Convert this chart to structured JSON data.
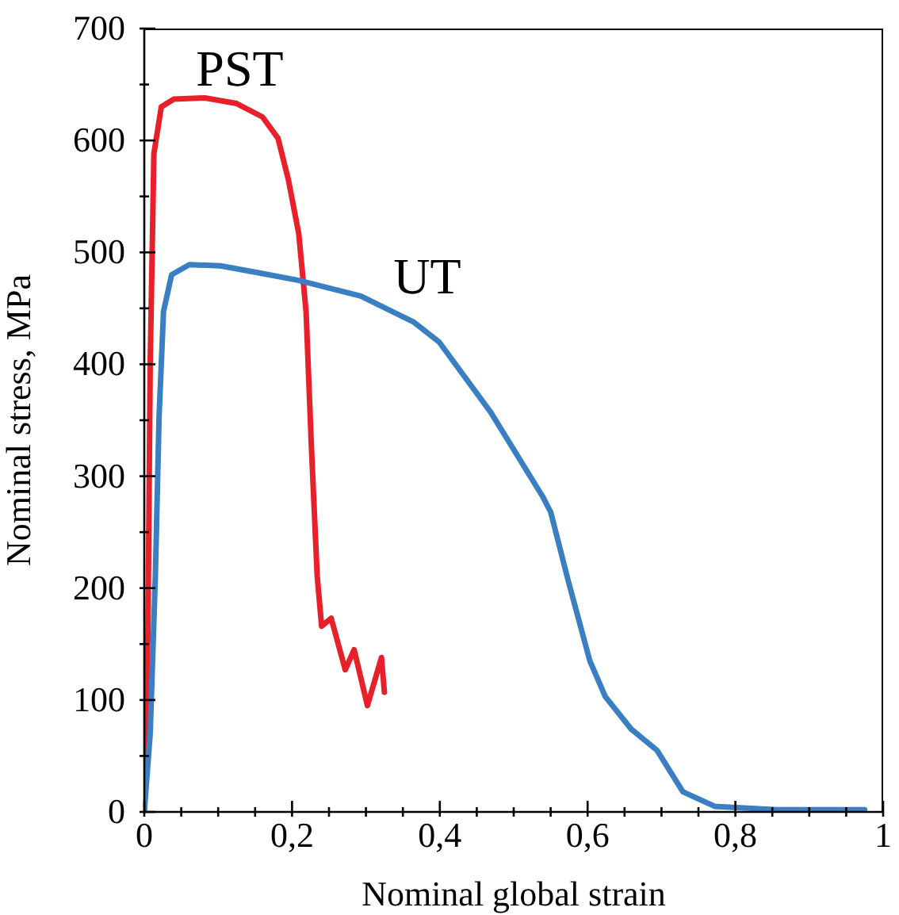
{
  "chart_data": {
    "type": "line",
    "xlabel": "Nominal global strain",
    "ylabel": "Nominal stress, MPa",
    "xlim": [
      0,
      1
    ],
    "ylim": [
      0,
      700
    ],
    "xticks": [
      {
        "value": 0,
        "label": "0"
      },
      {
        "value": 0.05,
        "label": null
      },
      {
        "value": 0.1,
        "label": null
      },
      {
        "value": 0.15,
        "label": null
      },
      {
        "value": 0.2,
        "label": "0,2"
      },
      {
        "value": 0.25,
        "label": null
      },
      {
        "value": 0.3,
        "label": null
      },
      {
        "value": 0.35,
        "label": null
      },
      {
        "value": 0.4,
        "label": "0,4"
      },
      {
        "value": 0.45,
        "label": null
      },
      {
        "value": 0.5,
        "label": null
      },
      {
        "value": 0.55,
        "label": null
      },
      {
        "value": 0.6,
        "label": "0,6"
      },
      {
        "value": 0.65,
        "label": null
      },
      {
        "value": 0.7,
        "label": null
      },
      {
        "value": 0.75,
        "label": null
      },
      {
        "value": 0.8,
        "label": "0,8"
      },
      {
        "value": 0.85,
        "label": null
      },
      {
        "value": 0.9,
        "label": null
      },
      {
        "value": 0.95,
        "label": null
      },
      {
        "value": 1,
        "label": "1"
      }
    ],
    "yticks": [
      0,
      {
        "value": 50,
        "label": null
      },
      100,
      {
        "value": 150,
        "label": null
      },
      200,
      {
        "value": 250,
        "label": null
      },
      300,
      {
        "value": 350,
        "label": null
      },
      400,
      {
        "value": 450,
        "label": null
      },
      500,
      {
        "value": 550,
        "label": null
      },
      600,
      {
        "value": 650,
        "label": null
      },
      700
    ],
    "grid": false,
    "legend": false,
    "marker": "none",
    "line_style": "solid",
    "series": [
      {
        "name": "PST",
        "color": "#e8202a",
        "x": [
          0,
          0.005,
          0.008,
          0.013,
          0.023,
          0.04,
          0.082,
          0.125,
          0.16,
          0.181,
          0.195,
          0.209,
          0.219,
          0.226,
          0.234,
          0.24,
          0.253,
          0.272,
          0.284,
          0.302,
          0.321,
          0.325
        ],
        "values": [
          0,
          164,
          400,
          588,
          630,
          637,
          638,
          633,
          621,
          602,
          565,
          517,
          447,
          329,
          211,
          166,
          173,
          127,
          145,
          95,
          138,
          107
        ]
      },
      {
        "name": "UT",
        "color": "#3a7fc1",
        "x": [
          0,
          0.008,
          0.015,
          0.02,
          0.026,
          0.037,
          0.061,
          0.103,
          0.153,
          0.209,
          0.293,
          0.364,
          0.399,
          0.469,
          0.539,
          0.55,
          0.574,
          0.603,
          0.624,
          0.659,
          0.694,
          0.729,
          0.772,
          0.856,
          0.975
        ],
        "values": [
          0,
          70,
          211,
          353,
          447,
          480,
          489,
          488,
          482,
          475,
          461,
          438,
          420,
          357,
          282,
          268,
          206,
          135,
          103,
          74,
          55,
          18,
          5,
          2,
          2
        ]
      }
    ]
  }
}
